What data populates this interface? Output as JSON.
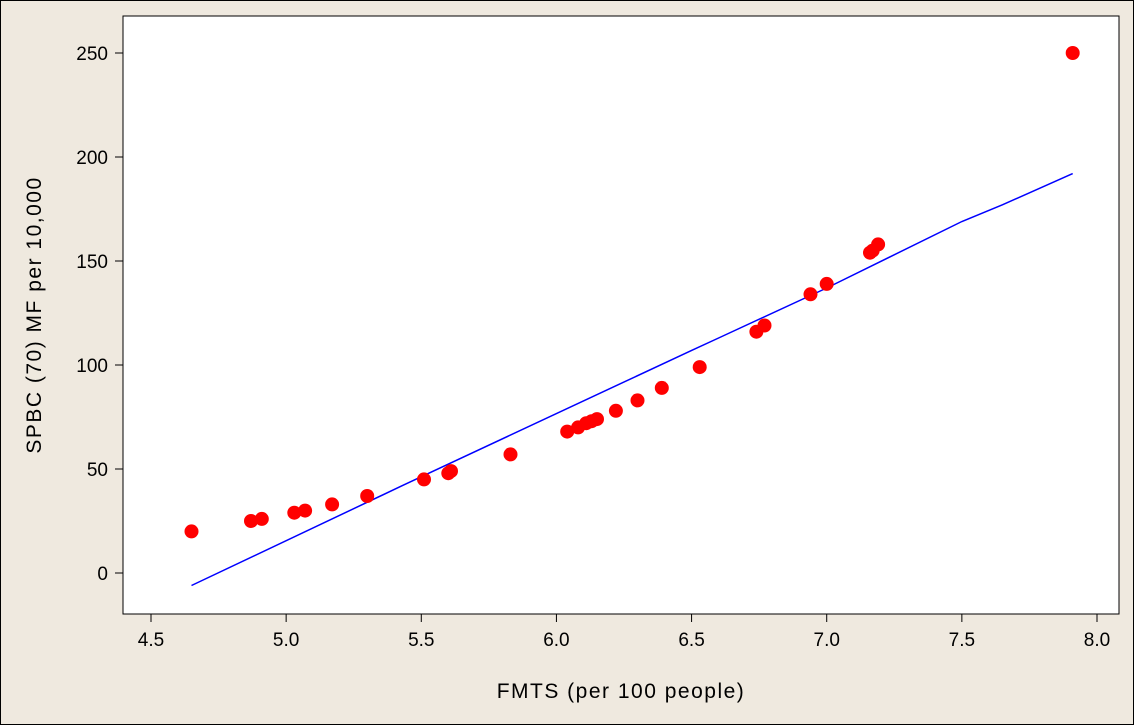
{
  "colors": {
    "background": "#efe9df",
    "plot_background": "#ffffff",
    "marker": "#ff0000",
    "fit_line": "#0000ff"
  },
  "chart_data": {
    "type": "scatter",
    "xlabel": "FMTS (per 100 people)",
    "ylabel": "SPBC (70) MF per 10,000",
    "xlim": [
      4.5,
      8.0
    ],
    "ylim": [
      0,
      250
    ],
    "xticks": [
      "4.5",
      "5.0",
      "5.5",
      "6.0",
      "6.5",
      "7.0",
      "7.5",
      "8.0"
    ],
    "yticks": [
      "0",
      "50",
      "100",
      "150",
      "200",
      "250"
    ],
    "grid": false,
    "series": [
      {
        "points": [
          [
            4.65,
            20
          ],
          [
            4.87,
            25
          ],
          [
            4.91,
            26
          ],
          [
            5.03,
            29
          ],
          [
            5.07,
            30
          ],
          [
            5.17,
            33
          ],
          [
            5.3,
            37
          ],
          [
            5.51,
            45
          ],
          [
            5.6,
            48
          ],
          [
            5.61,
            49
          ],
          [
            5.83,
            57
          ],
          [
            6.04,
            68
          ],
          [
            6.08,
            70
          ],
          [
            6.11,
            72
          ],
          [
            6.13,
            73
          ],
          [
            6.15,
            74
          ],
          [
            6.22,
            78
          ],
          [
            6.3,
            83
          ],
          [
            6.39,
            89
          ],
          [
            6.53,
            99
          ],
          [
            6.74,
            116
          ],
          [
            6.77,
            119
          ],
          [
            6.94,
            134
          ],
          [
            7.0,
            139
          ],
          [
            7.16,
            154
          ],
          [
            7.17,
            155
          ],
          [
            7.19,
            158
          ],
          [
            7.91,
            250
          ]
        ]
      }
    ],
    "fit_line": [
      [
        4.65,
        -6
      ],
      [
        5.43,
        42
      ],
      [
        6.5,
        107
      ],
      [
        6.6,
        113
      ],
      [
        7.0,
        137
      ],
      [
        7.5,
        169
      ],
      [
        7.65,
        177
      ],
      [
        7.91,
        192
      ]
    ]
  }
}
